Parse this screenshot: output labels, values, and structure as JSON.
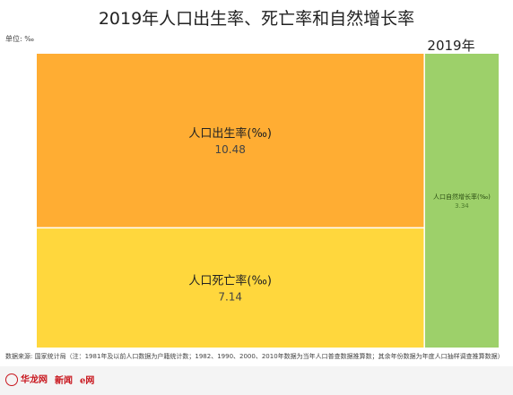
{
  "header": {
    "title": "2019年人口出生率、死亡率和自然增长率",
    "unit": "单位: ‰",
    "year": "2019年"
  },
  "chart_data": {
    "type": "treemap",
    "title": "2019年人口出生率、死亡率和自然增长率",
    "unit": "‰",
    "group": "2019年",
    "items": [
      {
        "label": "人口出生率(‰)",
        "value": 10.48,
        "color": "#ffad33"
      },
      {
        "label": "人口死亡率(‰)",
        "value": 7.14,
        "color": "#ffd73d"
      },
      {
        "label": "人口自然增长率(‰)",
        "value": 3.34,
        "color": "#9dd06a"
      }
    ]
  },
  "footer": {
    "source": "数据来源: 国家统计局（注：1981年及以前人口数据为户籍统计数；1982、1990、2000、2010年数据为当年人口普查数据推算数；其余年份数据为年度人口抽样调查推算数据）",
    "logos": [
      "华龙网",
      "新闻",
      "e网"
    ]
  }
}
